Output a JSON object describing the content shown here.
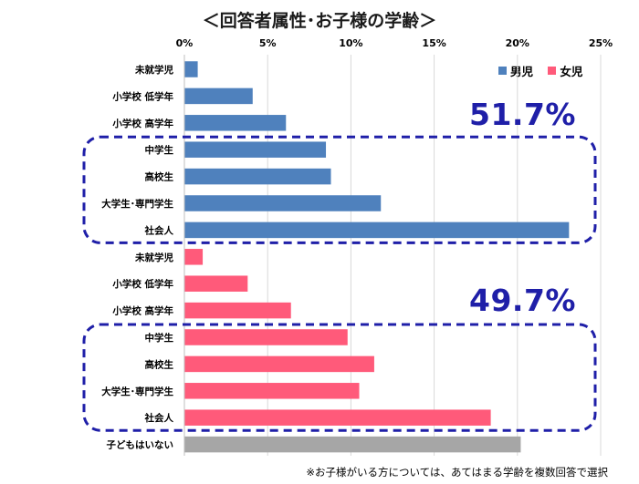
{
  "title": "＜回答者属性･お子様の学齢＞",
  "footnote": "※お子様がいる方については、あてはまる学齢を複数回答で選択",
  "colors": {
    "male": "#4f81bd",
    "female": "#ff5a7a",
    "none": "#a6a6a6",
    "callout": "#1f1fa8",
    "grid": "#d9d9d9"
  },
  "callouts": {
    "male_pct": "51.7%",
    "female_pct": "49.7%"
  },
  "chart_data": {
    "type": "bar",
    "orientation": "horizontal",
    "title": "＜回答者属性･お子様の学齢＞",
    "xlim": [
      0,
      25
    ],
    "x_ticks": [
      "0%",
      "5%",
      "10%",
      "15%",
      "20%",
      "25%"
    ],
    "grid": true,
    "legend": {
      "position": "top-right",
      "entries": [
        "男児",
        "女児"
      ]
    },
    "series": [
      {
        "name": "男児",
        "categories": [
          "未就学児",
          "小学校 低学年",
          "小学校 高学年",
          "中学生",
          "高校生",
          "大学生･専門学生",
          "社会人"
        ],
        "values": [
          0.8,
          4.1,
          6.1,
          8.5,
          8.8,
          11.8,
          23.1
        ]
      },
      {
        "name": "女児",
        "categories": [
          "未就学児",
          "小学校 低学年",
          "小学校 高学年",
          "中学生",
          "高校生",
          "大学生･専門学生",
          "社会人"
        ],
        "values": [
          1.1,
          3.8,
          6.4,
          9.8,
          11.4,
          10.5,
          18.4
        ]
      },
      {
        "name": "",
        "categories": [
          "子どもはいない"
        ],
        "values": [
          20.2
        ]
      }
    ]
  }
}
